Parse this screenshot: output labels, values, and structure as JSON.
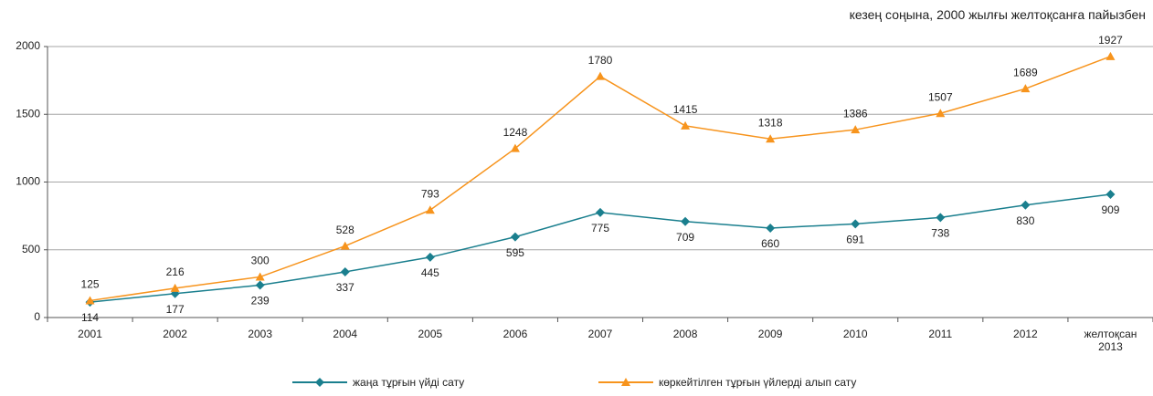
{
  "chart_data": {
    "type": "line",
    "title": "кезең соңына, 2000 жылғы желтоқсанға пайызбен",
    "categories": [
      "2001",
      "2002",
      "2003",
      "2004",
      "2005",
      "2006",
      "2007",
      "2008",
      "2009",
      "2010",
      "2011",
      "2012",
      "желтоқсан 2013"
    ],
    "series": [
      {
        "name": "жаңа тұрғын үйді сату",
        "color": "#1a7f8e",
        "marker": "diamond",
        "values": [
          114,
          177,
          239,
          337,
          445,
          595,
          775,
          709,
          660,
          691,
          738,
          830,
          909
        ]
      },
      {
        "name": "көркейтілген тұрғын үйлерді алып сату",
        "color": "#f7941d",
        "marker": "triangle",
        "values": [
          125,
          216,
          300,
          528,
          793,
          1248,
          1780,
          1415,
          1318,
          1386,
          1507,
          1689,
          1927
        ]
      }
    ],
    "ylim": [
      0,
      2000
    ],
    "yticks": [
      0,
      500,
      1000,
      1500,
      2000
    ],
    "grid": true
  }
}
